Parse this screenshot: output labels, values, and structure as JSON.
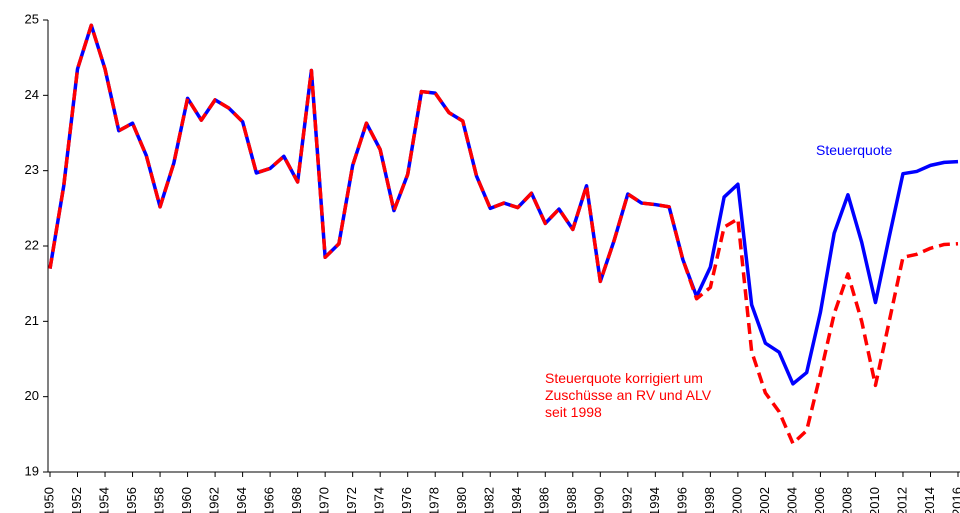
{
  "chart_data": {
    "type": "line",
    "x": [
      1950,
      1951,
      1952,
      1953,
      1954,
      1955,
      1956,
      1957,
      1958,
      1959,
      1960,
      1961,
      1962,
      1963,
      1964,
      1965,
      1966,
      1967,
      1968,
      1969,
      1970,
      1971,
      1972,
      1973,
      1974,
      1975,
      1976,
      1977,
      1978,
      1979,
      1980,
      1981,
      1982,
      1983,
      1984,
      1985,
      1986,
      1987,
      1988,
      1989,
      1990,
      1991,
      1992,
      1993,
      1994,
      1995,
      1996,
      1997,
      1998,
      1999,
      2000,
      2001,
      2002,
      2003,
      2004,
      2005,
      2006,
      2007,
      2008,
      2009,
      2010,
      2011,
      2012,
      2013,
      2014,
      2015,
      2016
    ],
    "series": [
      {
        "name": "Steuerquote",
        "color": "#0000ff",
        "dash": false,
        "values": [
          21.7,
          22.8,
          24.35,
          24.93,
          24.35,
          23.53,
          23.63,
          23.2,
          22.52,
          23.1,
          23.96,
          23.67,
          23.94,
          23.83,
          23.65,
          22.97,
          23.03,
          23.19,
          22.85,
          24.33,
          21.85,
          22.03,
          23.07,
          23.63,
          23.28,
          22.47,
          22.95,
          24.05,
          24.03,
          23.77,
          23.66,
          22.93,
          22.5,
          22.57,
          22.51,
          22.7,
          22.3,
          22.49,
          22.22,
          22.8,
          21.53,
          22.07,
          22.69,
          22.57,
          22.55,
          22.52,
          21.82,
          21.33,
          21.72,
          22.65,
          22.82,
          21.22,
          20.71,
          20.59,
          20.17,
          20.32,
          21.12,
          22.17,
          22.68,
          22.05,
          21.25,
          22.12,
          22.96,
          22.99,
          23.07,
          23.11,
          23.12
        ]
      },
      {
        "name": "Steuerquote korrigiert um\nZuschüsse an RV und ALV\nseit 1998",
        "color": "#ff0000",
        "dash": true,
        "values": [
          21.7,
          22.8,
          24.35,
          24.93,
          24.35,
          23.53,
          23.63,
          23.2,
          22.52,
          23.1,
          23.96,
          23.67,
          23.94,
          23.83,
          23.65,
          22.97,
          23.03,
          23.19,
          22.85,
          24.33,
          21.85,
          22.03,
          23.07,
          23.63,
          23.28,
          22.47,
          22.95,
          24.05,
          24.03,
          23.77,
          23.66,
          22.93,
          22.5,
          22.57,
          22.51,
          22.7,
          22.3,
          22.49,
          22.22,
          22.8,
          21.53,
          22.07,
          22.69,
          22.57,
          22.55,
          22.52,
          21.82,
          21.3,
          21.45,
          22.25,
          22.36,
          20.6,
          20.05,
          19.8,
          19.38,
          19.55,
          20.3,
          21.1,
          21.63,
          21.0,
          20.15,
          21.0,
          21.85,
          21.89,
          21.97,
          22.02,
          22.03
        ]
      }
    ],
    "xlim": [
      1950,
      2016
    ],
    "xticks": [
      1950,
      1952,
      1954,
      1956,
      1958,
      1960,
      1962,
      1964,
      1966,
      1968,
      1970,
      1972,
      1974,
      1976,
      1978,
      1980,
      1982,
      1984,
      1986,
      1988,
      1990,
      1992,
      1994,
      1996,
      1998,
      2000,
      2002,
      2004,
      2006,
      2008,
      2010,
      2012,
      2014,
      2016
    ],
    "ylim": [
      19,
      25
    ],
    "yticks": [
      19,
      20,
      21,
      22,
      23,
      24,
      25
    ],
    "grid": false
  }
}
